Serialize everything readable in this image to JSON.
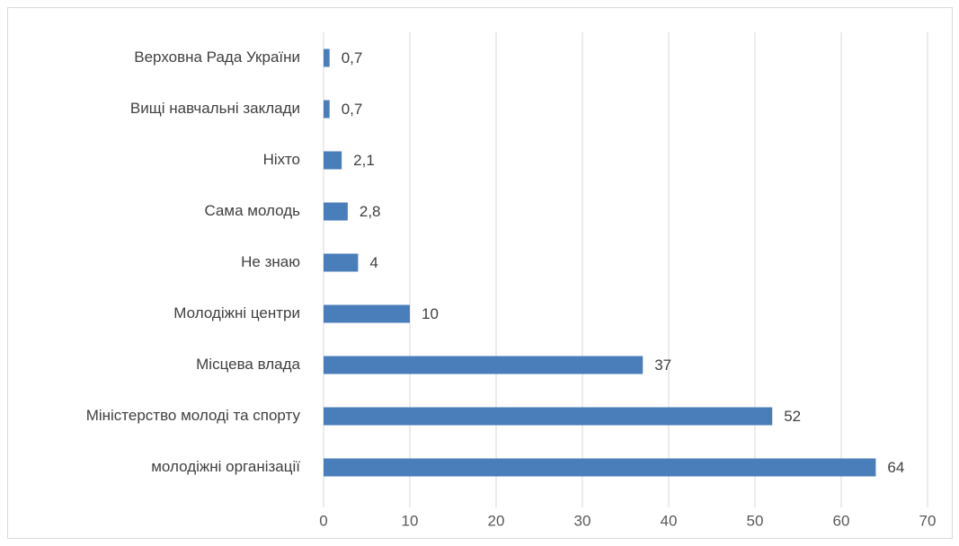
{
  "chart_data": {
    "type": "bar",
    "orientation": "horizontal",
    "categories": [
      "Верховна Рада України",
      "Вищі навчальні заклади",
      "Ніхто",
      "Сама молодь",
      "Не знаю",
      "Молодіжні центри",
      "Місцева влада",
      "Міністерство молоді та спорту",
      "молодіжні організації"
    ],
    "values": [
      0.7,
      0.7,
      2.1,
      2.8,
      4,
      10,
      37,
      52,
      64
    ],
    "value_labels": [
      "0,7",
      "0,7",
      "2,1",
      "2,8",
      "4",
      "10",
      "37",
      "52",
      "64"
    ],
    "color": "#4a7ebb",
    "xlim": [
      0,
      70
    ],
    "xticks": [
      0,
      10,
      20,
      30,
      40,
      50,
      60,
      70
    ],
    "grid": true
  }
}
